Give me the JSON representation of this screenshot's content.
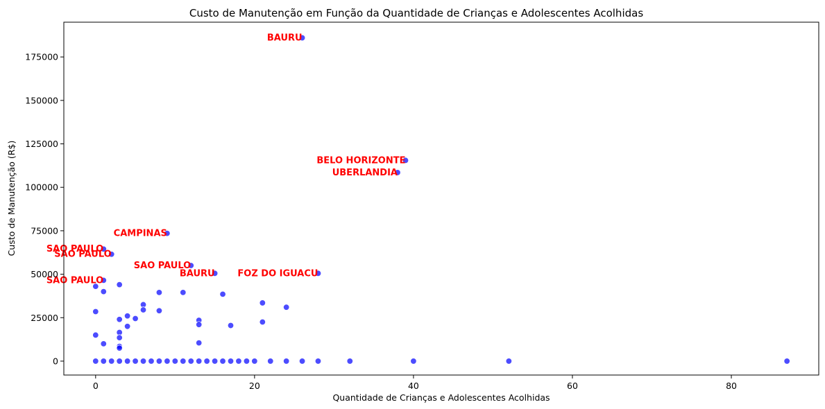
{
  "chart_data": {
    "type": "scatter",
    "title": "Custo de Manutenção em Função da Quantidade de Crianças e Adolescentes Acolhidas",
    "xlabel": "Quantidade de Crianças e Adolescentes Acolhidas",
    "ylabel": "Custo de Manutenção (R$)",
    "xlim": [
      -4,
      91
    ],
    "ylim": [
      -8000,
      195000
    ],
    "x_ticks": [
      0,
      20,
      40,
      60,
      80
    ],
    "y_ticks": [
      0,
      25000,
      50000,
      75000,
      100000,
      125000,
      150000,
      175000
    ],
    "x_tick_labels": [
      "0",
      "20",
      "40",
      "60",
      "80"
    ],
    "y_tick_labels": [
      "0",
      "25000",
      "50000",
      "75000",
      "100000",
      "125000",
      "150000",
      "175000"
    ],
    "grid": false,
    "point_color": "#0000ff",
    "annotation_color": "#ff0000",
    "points": [
      {
        "x": 26,
        "y": 186000
      },
      {
        "x": 39,
        "y": 115500
      },
      {
        "x": 38,
        "y": 108500
      },
      {
        "x": 9,
        "y": 73500
      },
      {
        "x": 1,
        "y": 64500
      },
      {
        "x": 2,
        "y": 61500
      },
      {
        "x": 12,
        "y": 55000
      },
      {
        "x": 15,
        "y": 50500
      },
      {
        "x": 28,
        "y": 50500
      },
      {
        "x": 1,
        "y": 46500
      },
      {
        "x": 3,
        "y": 44000
      },
      {
        "x": 0,
        "y": 43000
      },
      {
        "x": 1,
        "y": 40000
      },
      {
        "x": 8,
        "y": 39500
      },
      {
        "x": 11,
        "y": 39500
      },
      {
        "x": 16,
        "y": 38500
      },
      {
        "x": 21,
        "y": 33500
      },
      {
        "x": 6,
        "y": 32500
      },
      {
        "x": 24,
        "y": 31000
      },
      {
        "x": 6,
        "y": 29500
      },
      {
        "x": 8,
        "y": 29000
      },
      {
        "x": 0,
        "y": 28500
      },
      {
        "x": 4,
        "y": 26000
      },
      {
        "x": 5,
        "y": 24500
      },
      {
        "x": 3,
        "y": 24000
      },
      {
        "x": 13,
        "y": 23500
      },
      {
        "x": 21,
        "y": 22500
      },
      {
        "x": 13,
        "y": 21000
      },
      {
        "x": 17,
        "y": 20500
      },
      {
        "x": 4,
        "y": 20000
      },
      {
        "x": 3,
        "y": 16500
      },
      {
        "x": 0,
        "y": 15000
      },
      {
        "x": 3,
        "y": 13500
      },
      {
        "x": 13,
        "y": 10500
      },
      {
        "x": 1,
        "y": 10000
      },
      {
        "x": 3,
        "y": 8500
      },
      {
        "x": 3,
        "y": 7500
      },
      {
        "x": 0,
        "y": 0
      },
      {
        "x": 1,
        "y": 0
      },
      {
        "x": 2,
        "y": 0
      },
      {
        "x": 3,
        "y": 0
      },
      {
        "x": 4,
        "y": 0
      },
      {
        "x": 5,
        "y": 0
      },
      {
        "x": 6,
        "y": 0
      },
      {
        "x": 7,
        "y": 0
      },
      {
        "x": 8,
        "y": 0
      },
      {
        "x": 9,
        "y": 0
      },
      {
        "x": 10,
        "y": 0
      },
      {
        "x": 11,
        "y": 0
      },
      {
        "x": 12,
        "y": 0
      },
      {
        "x": 13,
        "y": 0
      },
      {
        "x": 14,
        "y": 0
      },
      {
        "x": 15,
        "y": 0
      },
      {
        "x": 16,
        "y": 0
      },
      {
        "x": 17,
        "y": 0
      },
      {
        "x": 18,
        "y": 0
      },
      {
        "x": 19,
        "y": 0
      },
      {
        "x": 20,
        "y": 0
      },
      {
        "x": 22,
        "y": 0
      },
      {
        "x": 24,
        "y": 0
      },
      {
        "x": 26,
        "y": 0
      },
      {
        "x": 28,
        "y": 0
      },
      {
        "x": 32,
        "y": 0
      },
      {
        "x": 40,
        "y": 0
      },
      {
        "x": 52,
        "y": 0
      },
      {
        "x": 87,
        "y": 0
      }
    ],
    "annotations": [
      {
        "text": "BAURU",
        "x": 26,
        "y": 186000
      },
      {
        "text": "BELO HORIZONTE",
        "x": 39,
        "y": 115500
      },
      {
        "text": "UBERLANDIA",
        "x": 38,
        "y": 108500
      },
      {
        "text": "CAMPINAS",
        "x": 9,
        "y": 73500
      },
      {
        "text": "SAO PAULO",
        "x": 1,
        "y": 64500
      },
      {
        "text": "SAO PAULO",
        "x": 2,
        "y": 61500
      },
      {
        "text": "SAO PAULO",
        "x": 12,
        "y": 55000
      },
      {
        "text": "BAURU",
        "x": 15,
        "y": 50500
      },
      {
        "text": "FOZ DO IGUACU",
        "x": 28,
        "y": 50500
      },
      {
        "text": "SAO PAULO",
        "x": 1,
        "y": 46500
      }
    ]
  }
}
